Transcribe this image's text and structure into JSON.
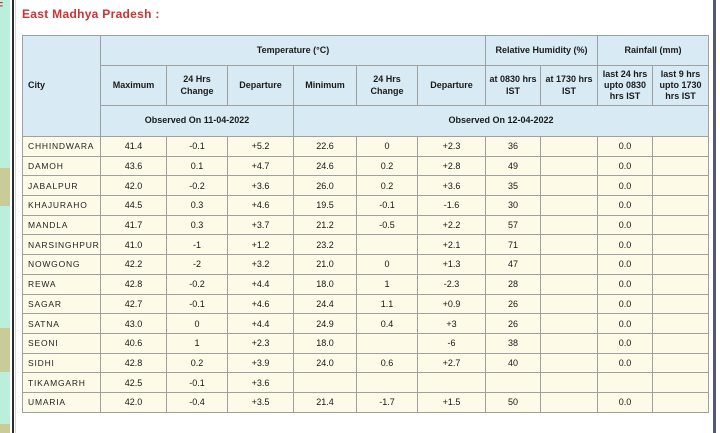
{
  "page": {
    "title": "East Madhya Pradesh :",
    "left_edge_fragment": "F"
  },
  "colors": {
    "title_red": "#cc3333",
    "observed_red": "#c53131",
    "header_blue": "#d8eaf3",
    "row_cream": "#fdfbe8",
    "border_gray": "#a0a0a0",
    "strip_cyan": "#b9efdb",
    "strip_tan": "#c9cc96",
    "rule_dark": "#2a2a33",
    "rule_purple": "#56567c"
  },
  "table": {
    "city_header": "City",
    "groups": [
      {
        "label": "Temperature (°C)",
        "span": 6
      },
      {
        "label": "Relative Humidity (%)",
        "span": 2
      },
      {
        "label": "Rainfall (mm)",
        "span": 2
      }
    ],
    "subheaders": [
      "Maximum",
      "24 Hrs Change",
      "Departure",
      "Minimum",
      "24 Hrs Change",
      "Departure",
      "at 0830 hrs IST",
      "at 1730 hrs IST",
      "last 24 hrs upto 0830 hrs IST",
      "last 9 hrs upto 1730 hrs IST"
    ],
    "observed": [
      {
        "label": "Observed On 11-04-2022",
        "span": 3
      },
      {
        "label": "Observed On 12-04-2022",
        "span": 7
      }
    ],
    "rows": [
      {
        "city": "CHHINDWARA",
        "values": [
          "41.4",
          "-0.1",
          "+5.2",
          "22.6",
          "0",
          "+2.3",
          "36",
          "",
          "0.0",
          ""
        ]
      },
      {
        "city": "DAMOH",
        "values": [
          "43.6",
          "0.1",
          "+4.7",
          "24.6",
          "0.2",
          "+2.8",
          "49",
          "",
          "0.0",
          ""
        ]
      },
      {
        "city": "JABALPUR",
        "values": [
          "42.0",
          "-0.2",
          "+3.6",
          "26.0",
          "0.2",
          "+3.6",
          "35",
          "",
          "0.0",
          ""
        ]
      },
      {
        "city": "KHAJURAHO",
        "values": [
          "44.5",
          "0.3",
          "+4.6",
          "19.5",
          "-0.1",
          "-1.6",
          "30",
          "",
          "0.0",
          ""
        ]
      },
      {
        "city": "MANDLA",
        "values": [
          "41.7",
          "0.3",
          "+3.7",
          "21.2",
          "-0.5",
          "+2.2",
          "57",
          "",
          "0.0",
          ""
        ]
      },
      {
        "city": "NARSINGHPUR",
        "values": [
          "41.0",
          "-1",
          "+1.2",
          "23.2",
          "",
          "+2.1",
          "71",
          "",
          "0.0",
          ""
        ]
      },
      {
        "city": "NOWGONG",
        "values": [
          "42.2",
          "-2",
          "+3.2",
          "21.0",
          "0",
          "+1.3",
          "47",
          "",
          "0.0",
          ""
        ]
      },
      {
        "city": "REWA",
        "values": [
          "42.8",
          "-0.2",
          "+4.4",
          "18.0",
          "1",
          "-2.3",
          "28",
          "",
          "0.0",
          ""
        ]
      },
      {
        "city": "SAGAR",
        "values": [
          "42.7",
          "-0.1",
          "+4.6",
          "24.4",
          "1.1",
          "+0.9",
          "26",
          "",
          "0.0",
          ""
        ]
      },
      {
        "city": "SATNA",
        "values": [
          "43.0",
          "0",
          "+4.4",
          "24.9",
          "0.4",
          "+3",
          "26",
          "",
          "0.0",
          ""
        ]
      },
      {
        "city": "SEONI",
        "values": [
          "40.6",
          "1",
          "+2.3",
          "18.0",
          "",
          "-6",
          "38",
          "",
          "0.0",
          ""
        ]
      },
      {
        "city": "SIDHI",
        "values": [
          "42.8",
          "0.2",
          "+3.9",
          "24.0",
          "0.6",
          "+2.7",
          "40",
          "",
          "0.0",
          ""
        ]
      },
      {
        "city": "TIKAMGARH",
        "values": [
          "42.5",
          "-0.1",
          "+3.6",
          "",
          "",
          "",
          "",
          "",
          "",
          ""
        ]
      },
      {
        "city": "UMARIA",
        "values": [
          "42.0",
          "-0.4",
          "+3.5",
          "21.4",
          "-1.7",
          "+1.5",
          "50",
          "",
          "0.0",
          ""
        ]
      }
    ]
  }
}
